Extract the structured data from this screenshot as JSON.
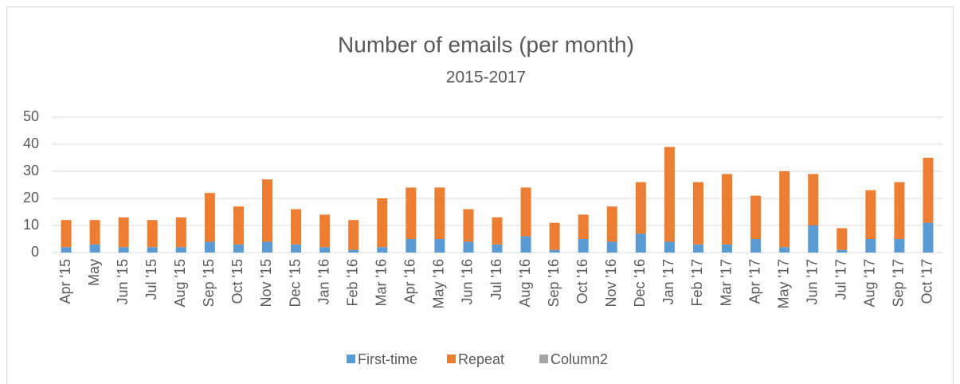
{
  "chart_data": {
    "type": "stacked-bar",
    "title": "Number of emails (per month)",
    "subtitle": "2015-2017",
    "categories": [
      "Apr '15",
      "May",
      "Jun '15",
      "Jul '15",
      "Aug '15",
      "Sep '15",
      "Oct '15",
      "Nov '15",
      "Dec '15",
      "Jan '16",
      "Feb '16",
      "Mar '16",
      "Apr '16",
      "May '16",
      "Jun '16",
      "Jul '16",
      "Aug '16",
      "Sep '16",
      "Oct '16",
      "Nov '16",
      "Dec '16",
      "Jan '17",
      "Feb '17",
      "Mar '17",
      "Apr '17",
      "May '17",
      "Jun '17",
      "Jul '17",
      "Aug '17",
      "Sep '17",
      "Oct '17"
    ],
    "series": [
      {
        "name": "First-time",
        "color": "#5b9bd5",
        "values": [
          2,
          3,
          2,
          2,
          2,
          4,
          3,
          4,
          3,
          2,
          1,
          2,
          5,
          5,
          4,
          3,
          6,
          1,
          5,
          4,
          7,
          4,
          3,
          3,
          5,
          2,
          10,
          1,
          5,
          5,
          11
        ]
      },
      {
        "name": "Repeat",
        "color": "#ed7d31",
        "values": [
          10,
          9,
          11,
          10,
          11,
          18,
          14,
          23,
          13,
          12,
          11,
          18,
          19,
          19,
          12,
          10,
          18,
          10,
          9,
          13,
          19,
          35,
          23,
          26,
          16,
          28,
          19,
          8,
          18,
          21,
          24
        ]
      },
      {
        "name": "Column2",
        "color": "#a5a5a5",
        "values": [
          null,
          null,
          null,
          null,
          null,
          null,
          null,
          null,
          null,
          null,
          null,
          null,
          null,
          null,
          null,
          null,
          null,
          null,
          null,
          null,
          null,
          null,
          null,
          null,
          null,
          null,
          null,
          null,
          null,
          null,
          null
        ]
      }
    ],
    "ylim": [
      0,
      50
    ],
    "yticks": [
      0,
      10,
      20,
      30,
      40,
      50
    ],
    "grid": true,
    "legend": "bottom"
  }
}
